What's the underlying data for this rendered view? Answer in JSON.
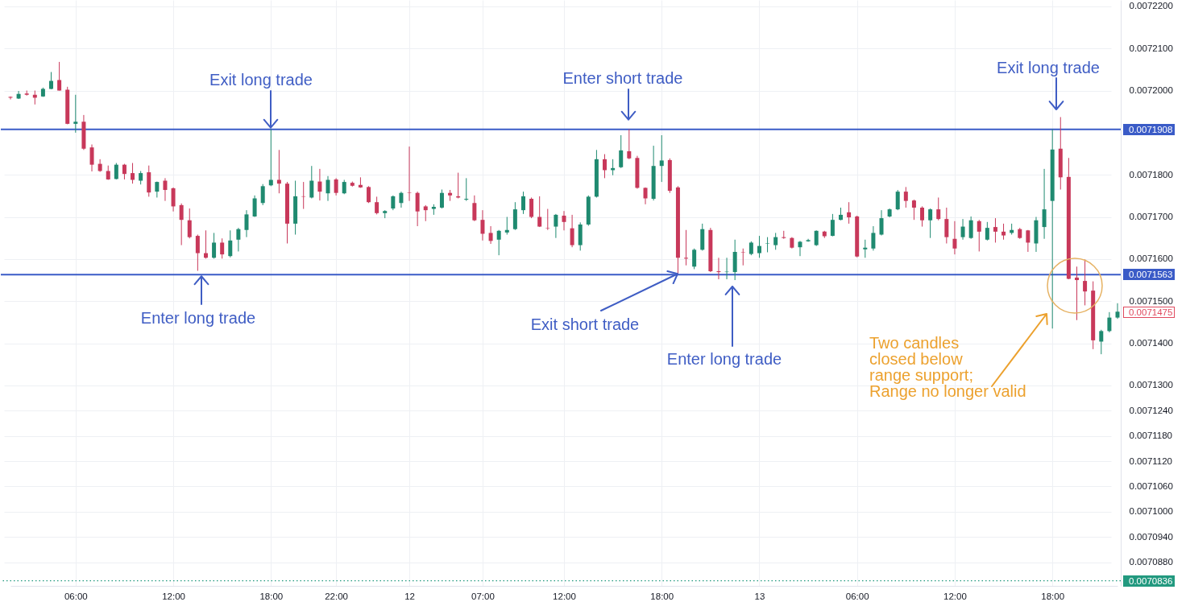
{
  "chart_data": {
    "type": "candlestick",
    "categories": [
      null,
      null,
      null,
      null,
      null,
      null,
      null,
      null,
      "06:00",
      null,
      null,
      null,
      null,
      null,
      null,
      null,
      null,
      null,
      null,
      null,
      "12:00",
      null,
      null,
      null,
      null,
      null,
      null,
      null,
      null,
      null,
      null,
      null,
      "18:00",
      null,
      null,
      null,
      null,
      null,
      null,
      null,
      "22:00",
      null,
      null,
      null,
      null,
      null,
      null,
      null,
      null,
      "12",
      null,
      null,
      null,
      null,
      null,
      null,
      null,
      null,
      "07:00",
      null,
      null,
      null,
      null,
      null,
      null,
      null,
      null,
      null,
      "12:00",
      null,
      null,
      null,
      null,
      null,
      null,
      null,
      null,
      null,
      null,
      null,
      "18:00",
      null,
      null,
      null,
      null,
      null,
      null,
      null,
      null,
      null,
      null,
      null,
      "13",
      null,
      null,
      null,
      null,
      null,
      null,
      null,
      null,
      null,
      null,
      null,
      "06:00",
      null,
      null,
      null,
      null,
      null,
      null,
      null,
      null,
      null,
      null,
      null,
      "12:00",
      null,
      null,
      null,
      null,
      null,
      null,
      null,
      null,
      null,
      null,
      null,
      "18:00",
      null,
      null,
      null,
      null,
      null,
      null,
      null,
      null
    ],
    "ohlc": [
      [
        0.0071985,
        0.0071986,
        0.0071979,
        0.0071983
      ],
      [
        0.0071981,
        0.0071999,
        0.007198,
        0.0071992
      ],
      [
        0.0071993,
        0.0072,
        0.0071988,
        0.007199
      ],
      [
        0.007199,
        0.0072,
        0.0071967,
        0.0071983
      ],
      [
        0.0071986,
        0.0072007,
        0.0071985,
        0.0072004
      ],
      [
        0.0072004,
        0.0072044,
        0.0072003,
        0.0072023
      ],
      [
        0.0072025,
        0.0072068,
        0.0072,
        0.0072
      ],
      [
        0.0072002,
        0.0072009,
        0.007192,
        0.0071921
      ],
      [
        0.0071921,
        0.007199,
        0.00719,
        0.0071926
      ],
      [
        0.0071926,
        0.0071942,
        0.0071859,
        0.0071862
      ],
      [
        0.0071865,
        0.0071872,
        0.0071808,
        0.0071824
      ],
      [
        0.0071826,
        0.0071837,
        0.0071807,
        0.0071809
      ],
      [
        0.0071809,
        0.0071822,
        0.0071788,
        0.0071789
      ],
      [
        0.007179,
        0.0071828,
        0.0071789,
        0.0071824
      ],
      [
        0.0071824,
        0.0071826,
        0.0071789,
        0.0071802
      ],
      [
        0.0071804,
        0.0071828,
        0.0071779,
        0.0071788
      ],
      [
        0.0071786,
        0.0071809,
        0.0071777,
        0.0071804
      ],
      [
        0.0071806,
        0.0071822,
        0.0071748,
        0.0071758
      ],
      [
        0.007176,
        0.0071784,
        0.0071746,
        0.0071783
      ],
      [
        0.0071786,
        0.0071792,
        0.0071738,
        0.0071764
      ],
      [
        0.0071768,
        0.007177,
        0.0071713,
        0.0071725
      ],
      [
        0.0071728,
        0.0071732,
        0.0071633,
        0.0071693
      ],
      [
        0.0071692,
        0.007172,
        0.0071649,
        0.0071652
      ],
      [
        0.0071655,
        0.0071658,
        0.0071572,
        0.0071614
      ],
      [
        0.0071614,
        0.0071668,
        0.0071601,
        0.0071603
      ],
      [
        0.0071603,
        0.0071662,
        0.0071601,
        0.0071639
      ],
      [
        0.0071639,
        0.0071649,
        0.0071601,
        0.0071611
      ],
      [
        0.0071607,
        0.0071668,
        0.0071604,
        0.0071644
      ],
      [
        0.0071646,
        0.0071674,
        0.0071618,
        0.0071671
      ],
      [
        0.0071669,
        0.0071716,
        0.0071652,
        0.0071706
      ],
      [
        0.0071701,
        0.0071751,
        0.00717,
        0.0071744
      ],
      [
        0.0071733,
        0.0071778,
        0.0071728,
        0.0071773
      ],
      [
        0.0071775,
        0.0071908,
        0.0071773,
        0.0071788
      ],
      [
        0.0071788,
        0.0071859,
        0.0071756,
        0.0071779
      ],
      [
        0.0071779,
        0.0071783,
        0.0071637,
        0.0071684
      ],
      [
        0.0071684,
        0.0071786,
        0.0071658,
        0.0071749
      ],
      [
        0.0071749,
        0.0071783,
        0.0071719,
        0.0071748
      ],
      [
        0.0071746,
        0.0071821,
        0.0071744,
        0.0071786
      ],
      [
        0.0071784,
        0.0071814,
        0.0071739,
        0.007176
      ],
      [
        0.0071756,
        0.0071797,
        0.0071738,
        0.0071788
      ],
      [
        0.0071789,
        0.0071792,
        0.0071751,
        0.0071757
      ],
      [
        0.0071756,
        0.0071788,
        0.0071754,
        0.0071783
      ],
      [
        0.0071781,
        0.0071784,
        0.0071772,
        0.0071774
      ],
      [
        0.0071776,
        0.0071794,
        0.0071769,
        0.007177
      ],
      [
        0.0071771,
        0.0071773,
        0.0071733,
        0.0071735
      ],
      [
        0.0071735,
        0.0071748,
        0.0071706,
        0.0071709
      ],
      [
        0.0071709,
        0.0071716,
        0.0071697,
        0.0071714
      ],
      [
        0.007172,
        0.0071751,
        0.0071716,
        0.0071749
      ],
      [
        0.0071733,
        0.007176,
        0.0071722,
        0.0071757
      ],
      [
        0.0071758,
        0.0071867,
        0.0071738,
        0.0071757
      ],
      [
        0.0071757,
        0.007176,
        0.0071678,
        0.0071713
      ],
      [
        0.0071725,
        0.0071728,
        0.007169,
        0.0071716
      ],
      [
        0.0071719,
        0.007173,
        0.0071705,
        0.0071724
      ],
      [
        0.0071722,
        0.0071765,
        0.007172,
        0.0071757
      ],
      [
        0.0071757,
        0.0071764,
        0.0071738,
        0.0071751
      ],
      [
        0.0071749,
        0.0071805,
        0.0071744,
        0.0071746
      ],
      [
        0.0071741,
        0.0071792,
        0.0071738,
        0.0071743
      ],
      [
        0.0071733,
        0.0071751,
        0.007169,
        0.0071692
      ],
      [
        0.0071693,
        0.0071716,
        0.0071644,
        0.007166
      ],
      [
        0.0071662,
        0.0071678,
        0.0071636,
        0.0071643
      ],
      [
        0.0071646,
        0.0071669,
        0.0071609,
        0.0071667
      ],
      [
        0.0071663,
        0.00717,
        0.0071658,
        0.0071669
      ],
      [
        0.0071671,
        0.0071735,
        0.0071669,
        0.0071718
      ],
      [
        0.0071716,
        0.007176,
        0.0071707,
        0.0071749
      ],
      [
        0.0071743,
        0.0071746,
        0.0071697,
        0.00717
      ],
      [
        0.00717,
        0.0071749,
        0.0071676,
        0.0071677
      ],
      [
        0.0071674,
        0.0071719,
        0.0071669,
        0.0071673
      ],
      [
        0.0071677,
        0.0071707,
        0.007165,
        0.0071705
      ],
      [
        0.0071703,
        0.0071714,
        0.0071668,
        0.0071688
      ],
      [
        0.0071673,
        0.0071705,
        0.0071628,
        0.0071633
      ],
      [
        0.0071633,
        0.0071687,
        0.007162,
        0.0071682
      ],
      [
        0.0071682,
        0.0071751,
        0.0071679,
        0.0071748
      ],
      [
        0.0071748,
        0.0071859,
        0.0071746,
        0.0071837
      ],
      [
        0.0071837,
        0.0071849,
        0.0071792,
        0.0071811
      ],
      [
        0.0071811,
        0.0071837,
        0.0071799,
        0.0071816
      ],
      [
        0.0071818,
        0.0071894,
        0.0071816,
        0.0071858
      ],
      [
        0.0071856,
        0.0071908,
        0.0071837,
        0.0071839
      ],
      [
        0.007184,
        0.0071845,
        0.0071767,
        0.0071769
      ],
      [
        0.0071769,
        0.007177,
        0.007173,
        0.0071744
      ],
      [
        0.0071743,
        0.0071869,
        0.0071739,
        0.0071821
      ],
      [
        0.0071821,
        0.0071894,
        0.0071783,
        0.0071834
      ],
      [
        0.0071835,
        0.0071839,
        0.0071757,
        0.0071762
      ],
      [
        0.007177,
        0.0071773,
        0.0071563,
        0.0071603
      ],
      [
        0.0071603,
        0.0071669,
        0.0071585,
        0.0071601
      ],
      [
        0.0071582,
        0.0071625,
        0.0071576,
        0.0071622
      ],
      [
        0.0071622,
        0.0071684,
        0.007162,
        0.0071671
      ],
      [
        0.0071669,
        0.0071674,
        0.0071569,
        0.0071571
      ],
      [
        0.0071571,
        0.0071603,
        0.0071552,
        0.0071569
      ],
      [
        0.0071569,
        0.0071603,
        0.0071552,
        0.007157
      ],
      [
        0.0071569,
        0.0071646,
        0.007155,
        0.0071617
      ],
      [
        0.0071617,
        0.0071625,
        0.0071585,
        0.0071616
      ],
      [
        0.0071612,
        0.0071642,
        0.0071609,
        0.0071639
      ],
      [
        0.0071614,
        0.0071655,
        0.0071603,
        0.0071631
      ],
      [
        0.0071636,
        0.0071652,
        0.0071616,
        0.0071637
      ],
      [
        0.0071633,
        0.0071662,
        0.0071622,
        0.0071652
      ],
      [
        0.0071652,
        0.0071667,
        0.0071648,
        0.007165
      ],
      [
        0.007165,
        0.0071652,
        0.0071625,
        0.0071627
      ],
      [
        0.0071628,
        0.0071643,
        0.0071607,
        0.0071641
      ],
      [
        0.0071642,
        0.0071648,
        0.0071641,
        0.0071645
      ],
      [
        0.0071633,
        0.0071668,
        0.0071631,
        0.0071667
      ],
      [
        0.0071665,
        0.0071667,
        0.007165,
        0.0071654
      ],
      [
        0.0071655,
        0.0071707,
        0.0071654,
        0.0071693
      ],
      [
        0.0071693,
        0.0071722,
        0.0071692,
        0.0071705
      ],
      [
        0.0071711,
        0.0071735,
        0.0071684,
        0.0071699
      ],
      [
        0.0071701,
        0.0071703,
        0.0071604,
        0.0071606
      ],
      [
        0.0071623,
        0.0071646,
        0.0071603,
        0.0071627
      ],
      [
        0.0071625,
        0.0071678,
        0.007162,
        0.0071662
      ],
      [
        0.0071658,
        0.0071716,
        0.0071656,
        0.0071697
      ],
      [
        0.0071701,
        0.007172,
        0.0071699,
        0.0071718
      ],
      [
        0.0071718,
        0.0071764,
        0.0071716,
        0.007176
      ],
      [
        0.007176,
        0.0071771,
        0.0071722,
        0.0071738
      ],
      [
        0.0071739,
        0.0071741,
        0.0071693,
        0.0071722
      ],
      [
        0.0071722,
        0.0071725,
        0.0071677,
        0.0071692
      ],
      [
        0.0071692,
        0.007172,
        0.007165,
        0.0071718
      ],
      [
        0.0071718,
        0.0071746,
        0.0071692,
        0.0071695
      ],
      [
        0.0071695,
        0.0071722,
        0.0071637,
        0.0071652
      ],
      [
        0.0071648,
        0.007169,
        0.0071611,
        0.0071625
      ],
      [
        0.0071652,
        0.0071695,
        0.0071646,
        0.0071677
      ],
      [
        0.007165,
        0.0071701,
        0.0071648,
        0.0071692
      ],
      [
        0.007169,
        0.0071693,
        0.0071618,
        0.0071665
      ],
      [
        0.0071646,
        0.0071688,
        0.0071644,
        0.0071674
      ],
      [
        0.0071676,
        0.0071697,
        0.0071639,
        0.0071665
      ],
      [
        0.0071665,
        0.0071684,
        0.0071646,
        0.0071656
      ],
      [
        0.0071662,
        0.0071684,
        0.0071658,
        0.0071669
      ],
      [
        0.0071671,
        0.0071674,
        0.0071648,
        0.007165
      ],
      [
        0.0071668,
        0.0071669,
        0.0071617,
        0.0071639
      ],
      [
        0.0071637,
        0.00717,
        0.0071617,
        0.0071692
      ],
      [
        0.0071676,
        0.0071814,
        0.0071648,
        0.0071718
      ],
      [
        0.0071738,
        0.0071908,
        0.0071435,
        0.007186
      ],
      [
        0.0071862,
        0.0071937,
        0.0071765,
        0.0071794
      ],
      [
        0.0071795,
        0.007184,
        0.0071552,
        0.0071553
      ],
      [
        0.0071556,
        0.0071582,
        0.0071455,
        0.007155
      ],
      [
        0.0071548,
        0.0071599,
        0.007149,
        0.0071523
      ],
      [
        0.0071525,
        0.0071547,
        0.0071386,
        0.0071407
      ],
      [
        0.0071404,
        0.0071432,
        0.0071374,
        0.0071429
      ],
      [
        0.0071429,
        0.0071474,
        0.0071426,
        0.0071461
      ],
      [
        0.0071461,
        0.0071495,
        0.0071458,
        0.0071475
      ]
    ],
    "colors": [
      "#c8385a",
      "#1f8a70",
      "#c8385a",
      "#c8385a",
      "#1f8a70",
      "#1f8a70",
      "#c8385a",
      "#c8385a",
      "#1f8a70",
      "#c8385a",
      "#c8385a",
      "#c8385a",
      "#c8385a",
      "#1f8a70",
      "#c8385a",
      "#c8385a",
      "#1f8a70",
      "#c8385a",
      "#1f8a70",
      "#c8385a",
      "#c8385a",
      "#c8385a",
      "#c8385a",
      "#c8385a",
      "#c8385a",
      "#1f8a70",
      "#c8385a",
      "#1f8a70",
      "#1f8a70",
      "#1f8a70",
      "#1f8a70",
      "#1f8a70",
      "#1f8a70",
      "#c8385a",
      "#c8385a",
      "#1f8a70",
      "#c8385a",
      "#1f8a70",
      "#c8385a",
      "#1f8a70",
      "#c8385a",
      "#1f8a70",
      "#c8385a",
      "#c8385a",
      "#c8385a",
      "#c8385a",
      "#1f8a70",
      "#1f8a70",
      "#1f8a70",
      "#c8385a",
      "#c8385a",
      "#c8385a",
      "#1f8a70",
      "#1f8a70",
      "#c8385a",
      "#c8385a",
      "#1f8a70",
      "#c8385a",
      "#c8385a",
      "#c8385a",
      "#1f8a70",
      "#1f8a70",
      "#1f8a70",
      "#1f8a70",
      "#c8385a",
      "#c8385a",
      "#c8385a",
      "#1f8a70",
      "#c8385a",
      "#c8385a",
      "#1f8a70",
      "#1f8a70",
      "#1f8a70",
      "#c8385a",
      "#1f8a70",
      "#1f8a70",
      "#c8385a",
      "#c8385a",
      "#c8385a",
      "#1f8a70",
      "#1f8a70",
      "#c8385a",
      "#c8385a",
      "#c8385a",
      "#1f8a70",
      "#1f8a70",
      "#c8385a",
      "#c8385a",
      "#1f8a70",
      "#1f8a70",
      "#c8385a",
      "#1f8a70",
      "#1f8a70",
      "#1f8a70",
      "#1f8a70",
      "#c8385a",
      "#c8385a",
      "#1f8a70",
      "#1f8a70",
      "#1f8a70",
      "#c8385a",
      "#1f8a70",
      "#1f8a70",
      "#c8385a",
      "#c8385a",
      "#1f8a70",
      "#1f8a70",
      "#1f8a70",
      "#1f8a70",
      "#1f8a70",
      "#c8385a",
      "#c8385a",
      "#c8385a",
      "#1f8a70",
      "#c8385a",
      "#c8385a",
      "#c8385a",
      "#1f8a70",
      "#1f8a70",
      "#c8385a",
      "#1f8a70",
      "#c8385a",
      "#c8385a",
      "#1f8a70",
      "#c8385a",
      "#c8385a",
      "#1f8a70",
      "#1f8a70",
      "#1f8a70",
      "#c8385a",
      "#c8385a",
      "#c8385a",
      "#c8385a",
      "#c8385a",
      "#1f8a70",
      "#1f8a70",
      "#1f8a70"
    ],
    "ylim": [
      0.0070824,
      0.0072215
    ],
    "yticks": [
      {
        "value": 0.00722,
        "label": "0.0072200"
      },
      {
        "value": 0.00721,
        "label": "0.0072100"
      },
      {
        "value": 0.0072,
        "label": "0.0072000"
      },
      {
        "value": 0.00718,
        "label": "0.0071800"
      },
      {
        "value": 0.00717,
        "label": "0.0071700"
      },
      {
        "value": 0.00716,
        "label": "0.0071600"
      },
      {
        "value": 0.00715,
        "label": "0.0071500"
      },
      {
        "value": 0.00714,
        "label": "0.0071400"
      },
      {
        "value": 0.00713,
        "label": "0.0071300"
      },
      {
        "value": 0.007124,
        "label": "0.0071240"
      },
      {
        "value": 0.007118,
        "label": "0.0071180"
      },
      {
        "value": 0.007112,
        "label": "0.0071120"
      },
      {
        "value": 0.007106,
        "label": "0.0071060"
      },
      {
        "value": 0.0071,
        "label": "0.0071000"
      },
      {
        "value": 0.007094,
        "label": "0.0070940"
      },
      {
        "value": 0.007088,
        "label": "0.0070880"
      }
    ],
    "grid": true,
    "ref_lines": [
      {
        "axis": "y",
        "value": 0.0071908,
        "label": "0.0071908",
        "color": "#3a5bc7"
      },
      {
        "axis": "y",
        "value": 0.0071563,
        "label": "0.0071563",
        "color": "#3a5bc7"
      },
      {
        "axis": "y",
        "value": 0.0070836,
        "label": "0.0070836",
        "color": "#22997f",
        "line_style": "dotted"
      }
    ],
    "annotations": [
      {
        "text": "Exit long trade",
        "y": 0.0071908
      },
      {
        "text": "Enter short trade",
        "y": 0.0071908
      },
      "Exit long trade",
      {
        "text": "Enter long trade",
        "y": 0.0071563
      },
      {
        "text": "Exit short trade",
        "y": 0.0071563
      },
      "Enter long trade",
      "Two candles\nclosed below\nrange support;\nRange no longer valid",
      "0.0071475"
    ]
  }
}
